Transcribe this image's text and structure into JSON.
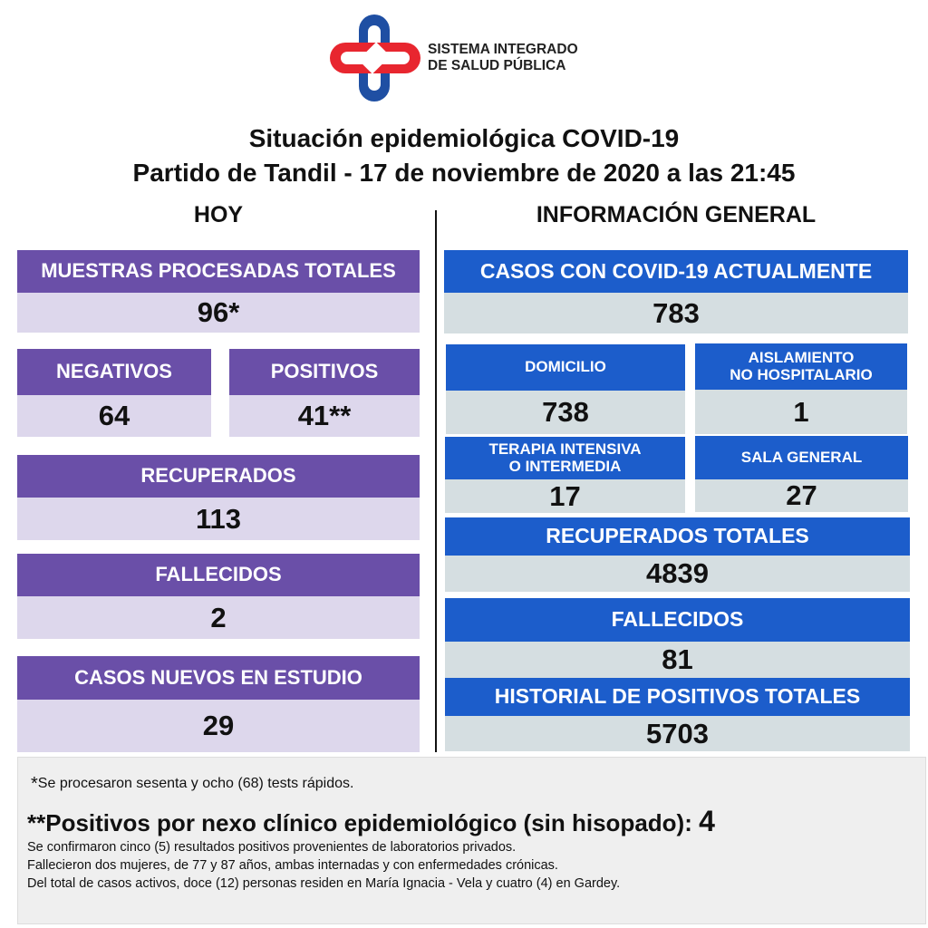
{
  "logo": {
    "line1": "SISTEMA INTEGRADO",
    "line2": "DE SALUD PÚBLICA",
    "colors": {
      "blue": "#1f4fa3",
      "red": "#e8262f"
    }
  },
  "title": {
    "line1": "Situación epidemiológica COVID-19",
    "line2": "Partido de Tandil - 17 de noviembre de 2020 a las 21:45"
  },
  "hoy": {
    "heading": "HOY",
    "muestras": {
      "label": "MUESTRAS PROCESADAS TOTALES",
      "value": "96*"
    },
    "negativos": {
      "label": "NEGATIVOS",
      "value": "64"
    },
    "positivos": {
      "label": "POSITIVOS",
      "value": "41**"
    },
    "recuperados": {
      "label": "RECUPERADOS",
      "value": "113"
    },
    "fallecidos": {
      "label": "FALLECIDOS",
      "value": "2"
    },
    "casos_nuevos": {
      "label": "CASOS NUEVOS EN ESTUDIO",
      "value": "29"
    }
  },
  "general": {
    "heading": "INFORMACIÓN GENERAL",
    "casos_actuales": {
      "label": "CASOS CON COVID-19 ACTUALMENTE",
      "value": "783"
    },
    "domicilio": {
      "label": "DOMICILIO",
      "value": "738"
    },
    "aislamiento": {
      "label1": "AISLAMIENTO",
      "label2": "NO HOSPITALARIO",
      "value": "1"
    },
    "terapia": {
      "label1": "TERAPIA INTENSIVA",
      "label2": "O INTERMEDIA",
      "value": "17"
    },
    "sala_general": {
      "label": "SALA GENERAL",
      "value": "27"
    },
    "recuperados_totales": {
      "label": "RECUPERADOS TOTALES",
      "value": "4839"
    },
    "fallecidos": {
      "label": "FALLECIDOS",
      "value": "81"
    },
    "historial": {
      "label": "HISTORIAL DE POSITIVOS TOTALES",
      "value": "5703"
    }
  },
  "footer": {
    "note1_mark": "*",
    "note1": "Se procesaron sesenta y ocho (68) tests rápidos.",
    "note2": "**Positivos por nexo clínico epidemiológico (sin hisopado):",
    "note2_value": "4",
    "lines": [
      "Se confirmaron cinco (5) resultados positivos provenientes de laboratorios privados.",
      "Fallecieron dos mujeres, de 77 y 87 años, ambas internadas y con enfermedades crónicas.",
      "Del total de casos activos, doce (12) personas residen en María Ignacia - Vela y cuatro  (4) en Gardey."
    ]
  },
  "colors": {
    "purple": "#6a4fa8",
    "lavender": "#ddd7ec",
    "blue": "#1c5dcb",
    "gray_blue": "#d5dee1"
  }
}
